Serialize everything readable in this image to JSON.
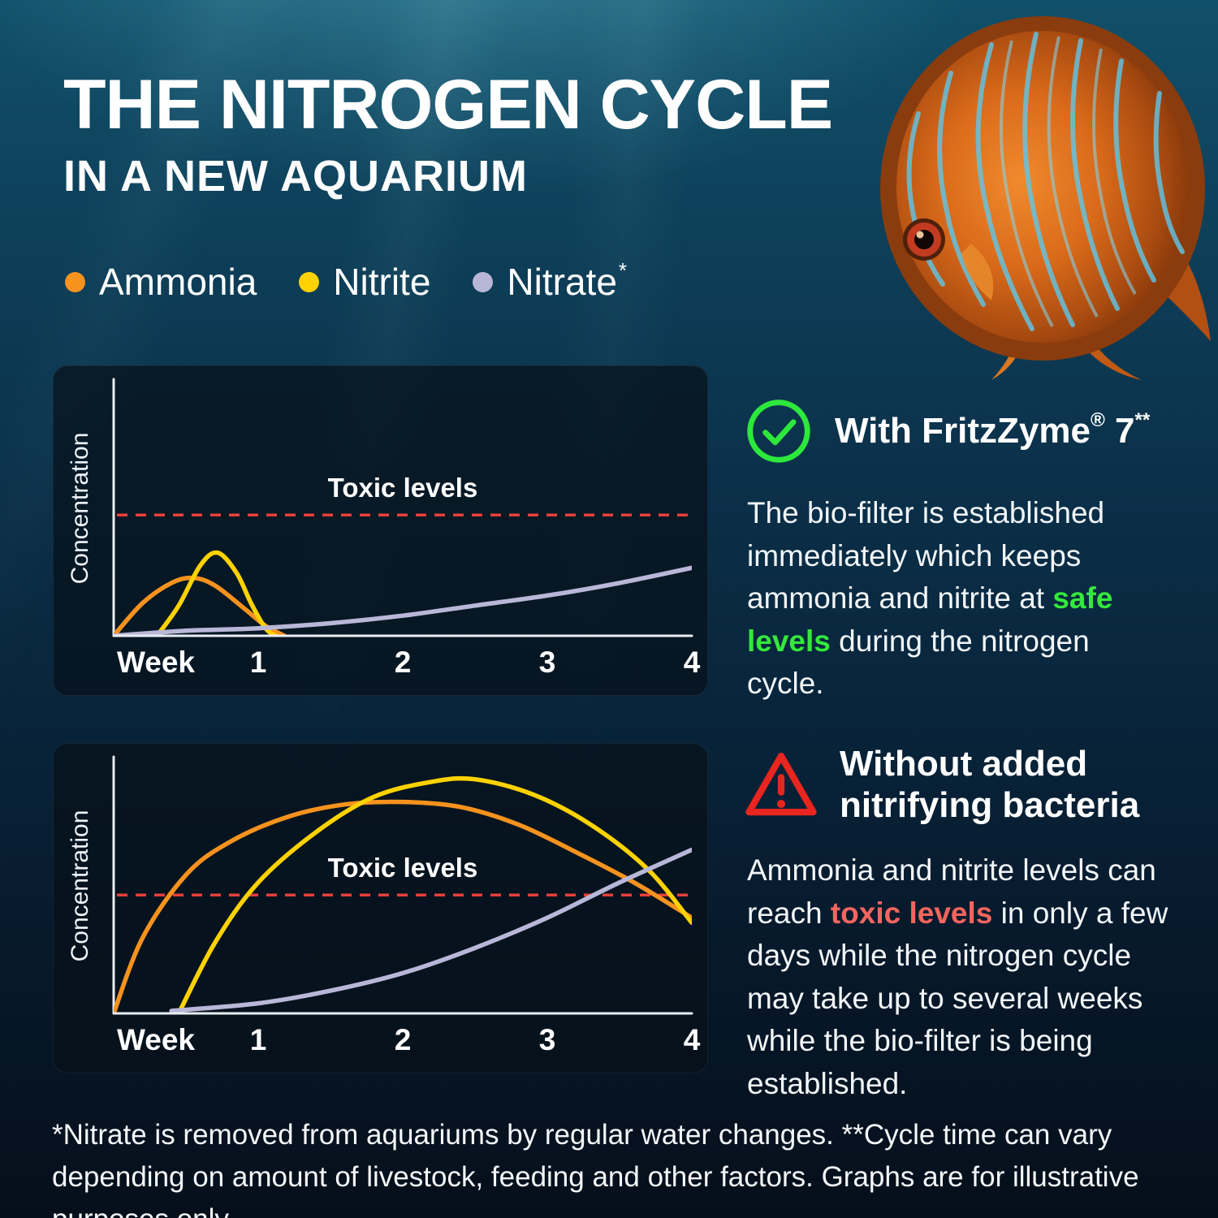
{
  "header": {
    "title_line1": "THE NITROGEN CYCLE",
    "title_line2": "IN A NEW AQUARIUM"
  },
  "legend": {
    "items": [
      {
        "label": "Ammonia",
        "suffix": "",
        "color": "#f6921e"
      },
      {
        "label": "Nitrite",
        "suffix": "",
        "color": "#ffd200"
      },
      {
        "label": "Nitrate",
        "suffix": "*",
        "color": "#b9b7d8"
      }
    ]
  },
  "chart_data": [
    {
      "type": "line",
      "name": "with-fritzzyme",
      "xlabel": "Week",
      "ylabel": "Concentration",
      "x_ticks": [
        "1",
        "2",
        "3",
        "4"
      ],
      "xlim": [
        0,
        4
      ],
      "ylim": [
        0,
        100
      ],
      "grid": false,
      "legend_position": "none",
      "toxic_label": "Toxic levels",
      "toxic_level": 48,
      "toxic_color": "#e8403a",
      "axis_color": "#e8eef2",
      "series": [
        {
          "name": "Ammonia",
          "color": "#f6921e",
          "points": [
            [
              0,
              0
            ],
            [
              0.2,
              13
            ],
            [
              0.4,
              21
            ],
            [
              0.55,
              23
            ],
            [
              0.7,
              20
            ],
            [
              0.9,
              11
            ],
            [
              1.05,
              4
            ],
            [
              1.18,
              0
            ]
          ]
        },
        {
          "name": "Nitrite",
          "color": "#ffd200",
          "points": [
            [
              0.3,
              0
            ],
            [
              0.45,
              12
            ],
            [
              0.6,
              28
            ],
            [
              0.72,
              33
            ],
            [
              0.85,
              25
            ],
            [
              0.95,
              13
            ],
            [
              1.05,
              3
            ],
            [
              1.12,
              0
            ]
          ]
        },
        {
          "name": "Nitrate",
          "color": "#b9b7d8",
          "points": [
            [
              0,
              0
            ],
            [
              0.5,
              2
            ],
            [
              1,
              3
            ],
            [
              1.5,
              5
            ],
            [
              2,
              8
            ],
            [
              2.5,
              12
            ],
            [
              3,
              16
            ],
            [
              3.5,
              21
            ],
            [
              4,
              27
            ]
          ]
        }
      ]
    },
    {
      "type": "line",
      "name": "without-added-nitrifying-bacteria",
      "xlabel": "Week",
      "ylabel": "Concentration",
      "x_ticks": [
        "1",
        "2",
        "3",
        "4"
      ],
      "xlim": [
        0,
        4
      ],
      "ylim": [
        0,
        100
      ],
      "grid": false,
      "legend_position": "none",
      "toxic_label": "Toxic levels",
      "toxic_level": 47,
      "toxic_color": "#e8403a",
      "axis_color": "#e8eef2",
      "series": [
        {
          "name": "Ammonia",
          "color": "#f6921e",
          "points": [
            [
              0,
              0
            ],
            [
              0.2,
              30
            ],
            [
              0.5,
              55
            ],
            [
              0.8,
              68
            ],
            [
              1.2,
              78
            ],
            [
              1.6,
              83
            ],
            [
              2.0,
              84
            ],
            [
              2.4,
              82
            ],
            [
              2.8,
              75
            ],
            [
              3.2,
              64
            ],
            [
              3.6,
              52
            ],
            [
              4.0,
              38
            ]
          ]
        },
        {
          "name": "Nitrite",
          "color": "#ffd200",
          "points": [
            [
              0.45,
              0
            ],
            [
              0.7,
              28
            ],
            [
              1.0,
              52
            ],
            [
              1.4,
              72
            ],
            [
              1.8,
              86
            ],
            [
              2.2,
              92
            ],
            [
              2.5,
              93
            ],
            [
              2.9,
              87
            ],
            [
              3.3,
              75
            ],
            [
              3.7,
              57
            ],
            [
              4.0,
              36
            ]
          ]
        },
        {
          "name": "Nitrate",
          "color": "#b9b7d8",
          "points": [
            [
              0.4,
              1
            ],
            [
              1.0,
              4
            ],
            [
              1.5,
              9
            ],
            [
              2.0,
              16
            ],
            [
              2.5,
              26
            ],
            [
              3.0,
              38
            ],
            [
              3.5,
              52
            ],
            [
              4.0,
              65
            ]
          ]
        }
      ]
    }
  ],
  "right_column": {
    "with_fritzzyme": {
      "icon": "check-circle-icon",
      "icon_color": "#2de83c",
      "heading_main": "With FritzZyme",
      "heading_sup1": "®",
      "heading_mid": " 7",
      "heading_sup2": "**",
      "body_before": "The bio-filter is established immediately which keeps ammonia and nitrite at ",
      "body_highlight": "safe levels",
      "body_after": " during the nitrogen cycle.",
      "highlight_color": "#35e83c"
    },
    "without_bacteria": {
      "icon": "warning-triangle-icon",
      "icon_color": "#e8251f",
      "heading": "Without added nitrifying bacteria",
      "body_before": "Ammonia and nitrite levels can reach ",
      "body_highlight": "toxic levels",
      "body_after": " in only a few days while the nitrogen cycle may take up to several weeks while the bio-filter is being established.",
      "highlight_color": "#f3655f"
    }
  },
  "footnote": "*Nitrate is removed from aquariums by regular water changes. **Cycle time can vary depending on amount of livestock, feeding and other factors. Graphs are for illustrative purposes only."
}
